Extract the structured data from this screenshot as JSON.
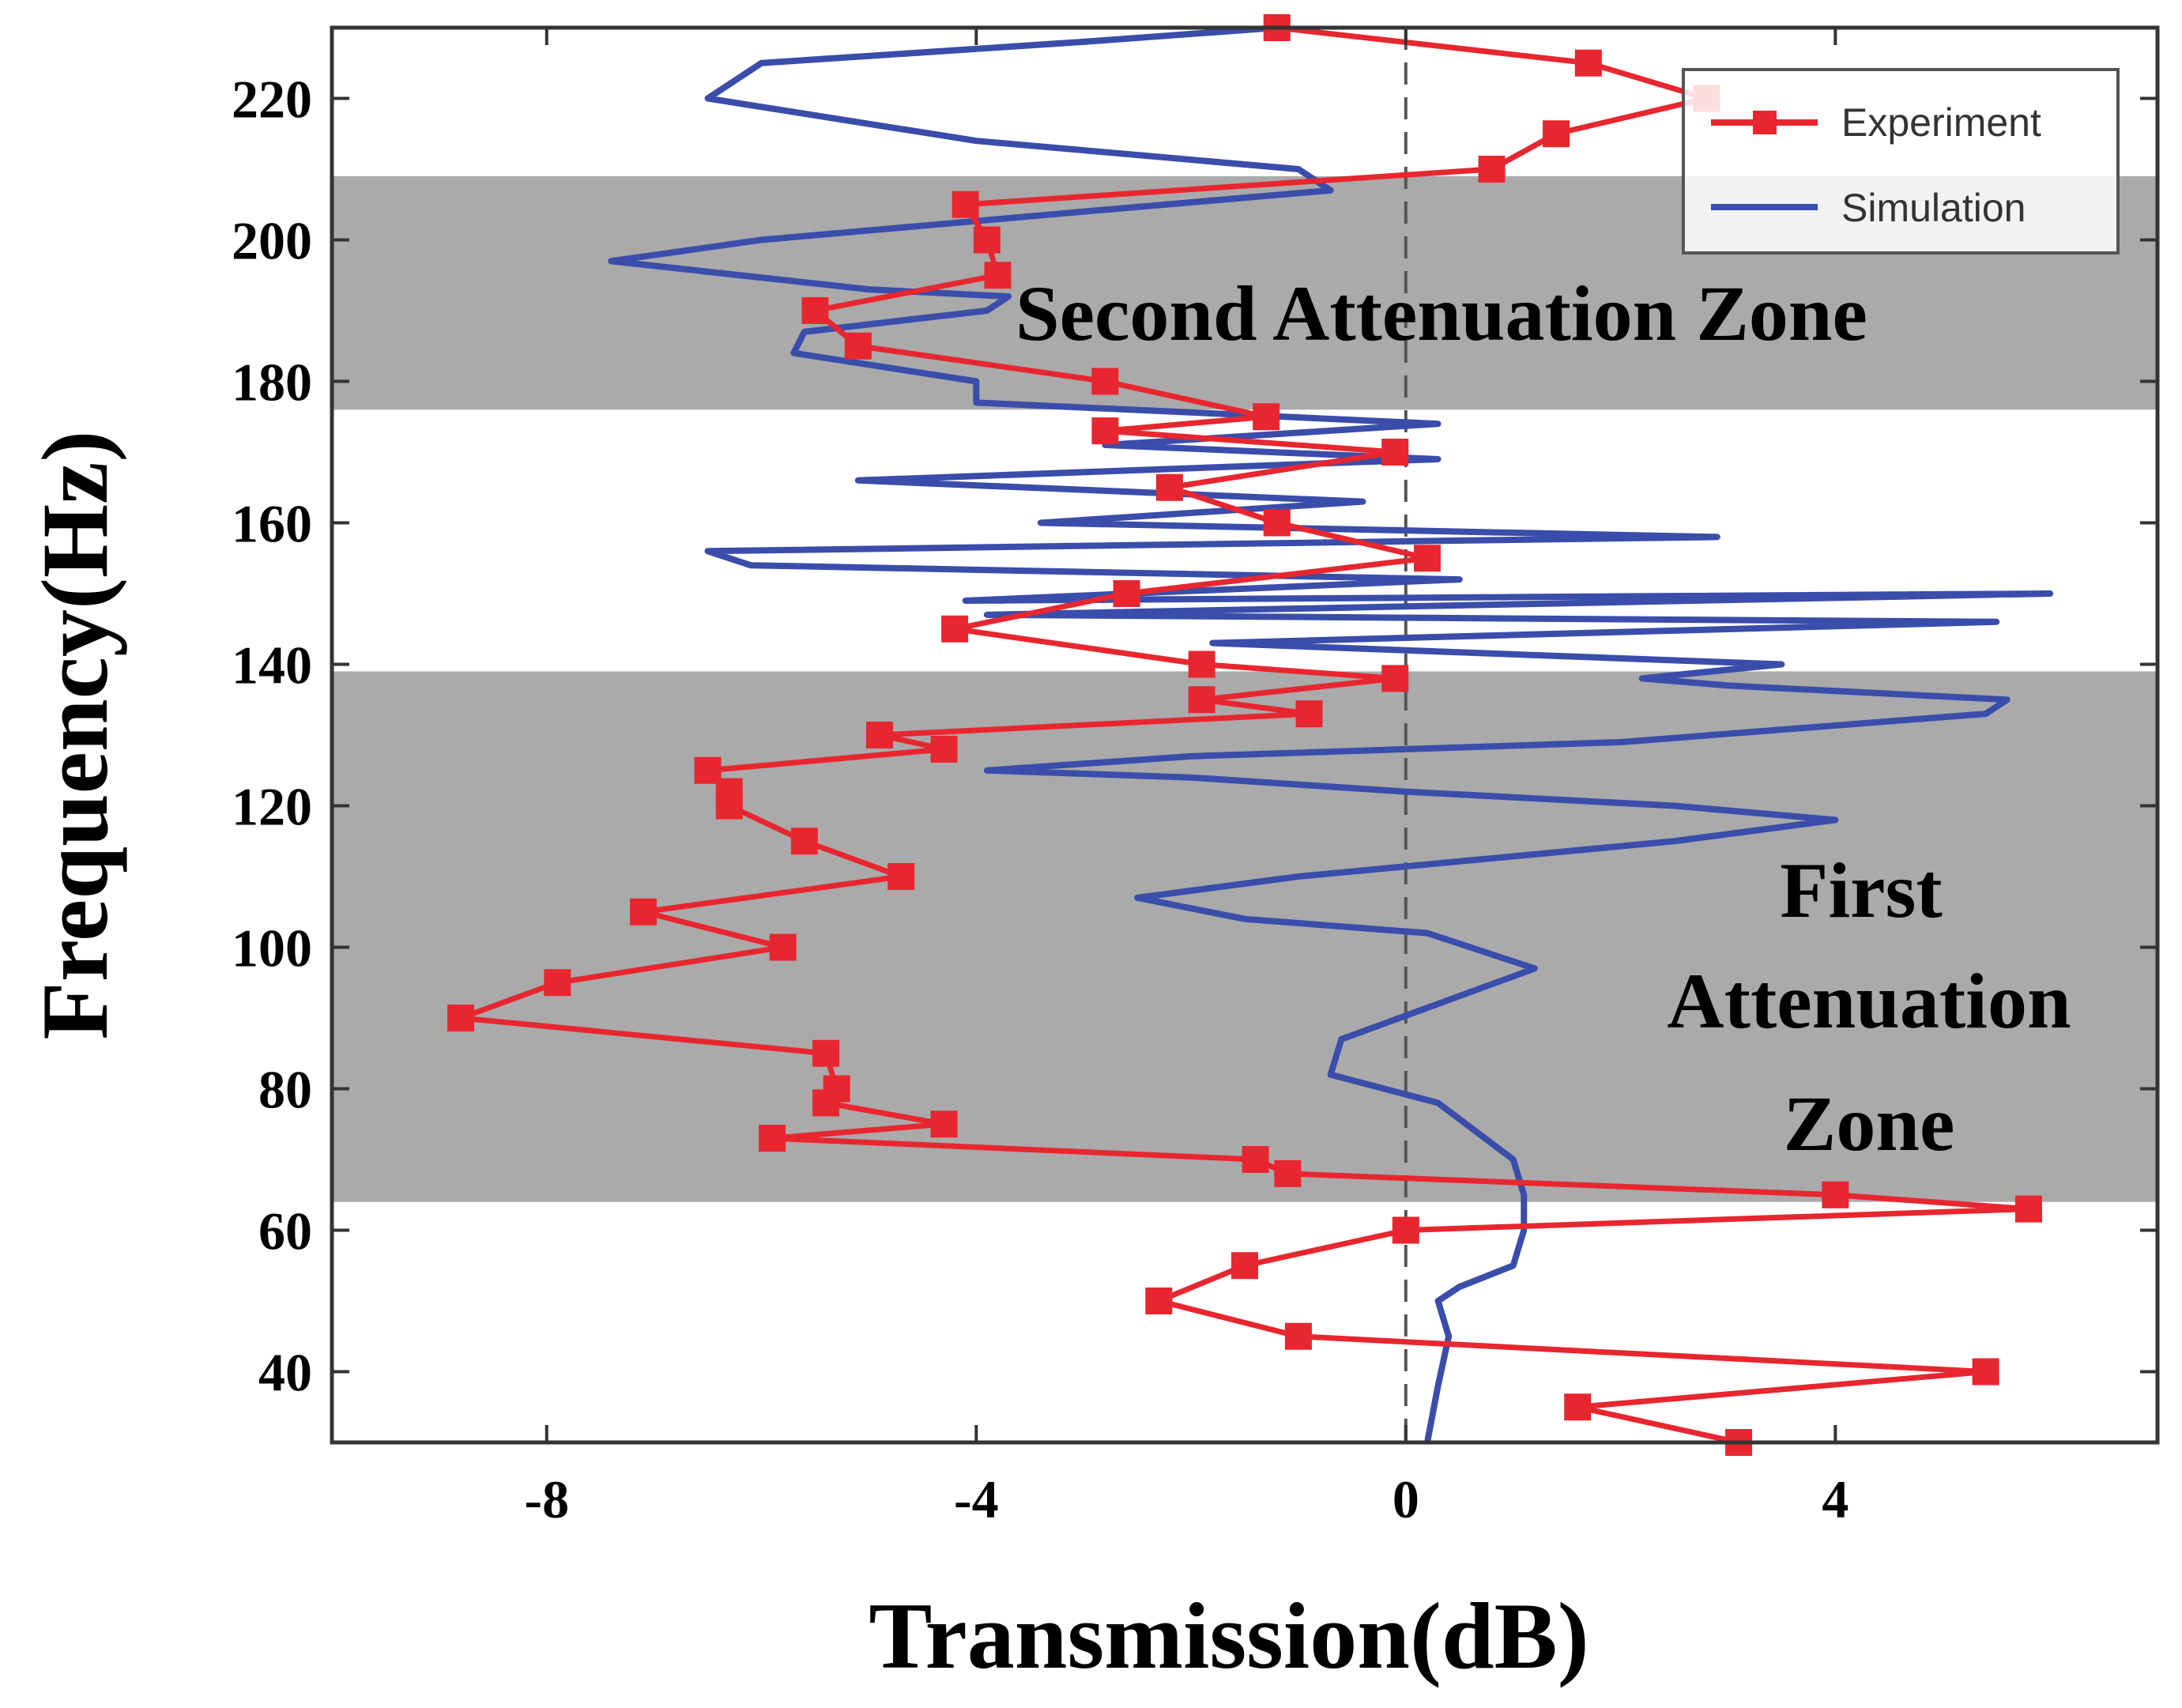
{
  "chart_data": {
    "type": "line",
    "orientation": "transmission on x-axis, frequency on y-axis",
    "xlabel": "Transmission(dB)",
    "ylabel": "Frequency(Hz)",
    "xlim": [
      -10,
      7
    ],
    "ylim": [
      30,
      230
    ],
    "x_ticks": [
      -8,
      -4,
      0,
      4
    ],
    "x_tick_labels": [
      "-8",
      "-4",
      "0",
      "4"
    ],
    "y_ticks": [
      40,
      60,
      80,
      100,
      120,
      140,
      160,
      180,
      200,
      220
    ],
    "y_tick_labels": [
      "40",
      "60",
      "80",
      "100",
      "120",
      "140",
      "160",
      "180",
      "200",
      "220"
    ],
    "reference_line": {
      "x": 0,
      "style": "dashed"
    },
    "shaded_zones": [
      {
        "name": "First Attenuation Zone",
        "label_lines": [
          "First",
          "Attenuation",
          "Zone"
        ],
        "y_range": [
          64,
          139
        ],
        "color": "#aaaaaa"
      },
      {
        "name": "Second Attenuation Zone",
        "label_lines": [
          "Second Attenuation Zone"
        ],
        "y_range": [
          176,
          209
        ],
        "color": "#aaaaaa"
      }
    ],
    "legend": {
      "position": "top-right",
      "entries": [
        "Experiment",
        "Simulation"
      ]
    },
    "series": [
      {
        "name": "Experiment",
        "color": "#e8262f",
        "marker": "square",
        "points": [
          {
            "x": 3.1,
            "y": 30
          },
          {
            "x": 1.6,
            "y": 35
          },
          {
            "x": 5.4,
            "y": 40
          },
          {
            "x": -1.0,
            "y": 45
          },
          {
            "x": -2.3,
            "y": 50
          },
          {
            "x": -1.5,
            "y": 55
          },
          {
            "x": 0.0,
            "y": 60
          },
          {
            "x": 5.8,
            "y": 63
          },
          {
            "x": 4.0,
            "y": 65
          },
          {
            "x": -1.1,
            "y": 68
          },
          {
            "x": -1.4,
            "y": 70
          },
          {
            "x": -5.9,
            "y": 73
          },
          {
            "x": -4.3,
            "y": 75
          },
          {
            "x": -5.4,
            "y": 78
          },
          {
            "x": -5.3,
            "y": 80
          },
          {
            "x": -5.4,
            "y": 85
          },
          {
            "x": -8.8,
            "y": 90
          },
          {
            "x": -7.9,
            "y": 95
          },
          {
            "x": -5.8,
            "y": 100
          },
          {
            "x": -7.1,
            "y": 105
          },
          {
            "x": -4.7,
            "y": 110
          },
          {
            "x": -5.6,
            "y": 115
          },
          {
            "x": -6.3,
            "y": 120
          },
          {
            "x": -6.3,
            "y": 122
          },
          {
            "x": -6.5,
            "y": 125
          },
          {
            "x": -4.3,
            "y": 128
          },
          {
            "x": -4.9,
            "y": 130
          },
          {
            "x": -0.9,
            "y": 133
          },
          {
            "x": -1.9,
            "y": 135
          },
          {
            "x": -0.1,
            "y": 138
          },
          {
            "x": -1.9,
            "y": 140
          },
          {
            "x": -4.2,
            "y": 145
          },
          {
            "x": -2.6,
            "y": 150
          },
          {
            "x": 0.2,
            "y": 155
          },
          {
            "x": -1.2,
            "y": 160
          },
          {
            "x": -2.2,
            "y": 165
          },
          {
            "x": -0.1,
            "y": 170
          },
          {
            "x": -2.8,
            "y": 173
          },
          {
            "x": -1.3,
            "y": 175
          },
          {
            "x": -2.8,
            "y": 180
          },
          {
            "x": -5.1,
            "y": 185
          },
          {
            "x": -5.5,
            "y": 190
          },
          {
            "x": -3.8,
            "y": 195
          },
          {
            "x": -3.9,
            "y": 200
          },
          {
            "x": -4.1,
            "y": 205
          },
          {
            "x": 0.8,
            "y": 210
          },
          {
            "x": 1.4,
            "y": 215
          },
          {
            "x": 2.8,
            "y": 220
          },
          {
            "x": 1.7,
            "y": 225
          },
          {
            "x": -1.2,
            "y": 230
          }
        ]
      },
      {
        "name": "Simulation",
        "color": "#3a4dab",
        "marker": "none",
        "points": [
          {
            "x": 0.2,
            "y": 30
          },
          {
            "x": 0.3,
            "y": 38
          },
          {
            "x": 0.4,
            "y": 45
          },
          {
            "x": 0.3,
            "y": 50
          },
          {
            "x": 0.5,
            "y": 52
          },
          {
            "x": 1.0,
            "y": 55
          },
          {
            "x": 1.1,
            "y": 60
          },
          {
            "x": 1.1,
            "y": 65
          },
          {
            "x": 1.0,
            "y": 70
          },
          {
            "x": 0.3,
            "y": 78
          },
          {
            "x": -0.7,
            "y": 82
          },
          {
            "x": -0.6,
            "y": 87
          },
          {
            "x": 0.3,
            "y": 92
          },
          {
            "x": 1.2,
            "y": 97
          },
          {
            "x": 0.2,
            "y": 102
          },
          {
            "x": -1.5,
            "y": 104
          },
          {
            "x": -2.5,
            "y": 107
          },
          {
            "x": -1.0,
            "y": 110
          },
          {
            "x": 2.5,
            "y": 115
          },
          {
            "x": 4.0,
            "y": 118
          },
          {
            "x": 2.5,
            "y": 120
          },
          {
            "x": 0.0,
            "y": 122
          },
          {
            "x": -2.0,
            "y": 124
          },
          {
            "x": -3.9,
            "y": 125
          },
          {
            "x": -2.0,
            "y": 127
          },
          {
            "x": 2.0,
            "y": 129
          },
          {
            "x": 5.4,
            "y": 133
          },
          {
            "x": 5.6,
            "y": 135
          },
          {
            "x": 3.0,
            "y": 137
          },
          {
            "x": 2.2,
            "y": 138
          },
          {
            "x": 3.5,
            "y": 140
          },
          {
            "x": -1.8,
            "y": 143
          },
          {
            "x": 5.5,
            "y": 146
          },
          {
            "x": -3.9,
            "y": 147
          },
          {
            "x": 6.0,
            "y": 150
          },
          {
            "x": -4.1,
            "y": 149
          },
          {
            "x": 0.5,
            "y": 152
          },
          {
            "x": -6.1,
            "y": 154
          },
          {
            "x": -6.5,
            "y": 156
          },
          {
            "x": 2.9,
            "y": 158
          },
          {
            "x": -3.4,
            "y": 160
          },
          {
            "x": -0.4,
            "y": 163
          },
          {
            "x": -5.1,
            "y": 166
          },
          {
            "x": 0.3,
            "y": 169
          },
          {
            "x": -2.8,
            "y": 171
          },
          {
            "x": 0.3,
            "y": 174
          },
          {
            "x": -4.0,
            "y": 177
          },
          {
            "x": -4.0,
            "y": 180
          },
          {
            "x": -5.7,
            "y": 184
          },
          {
            "x": -5.6,
            "y": 187
          },
          {
            "x": -3.9,
            "y": 190
          },
          {
            "x": -3.7,
            "y": 192
          },
          {
            "x": -5.0,
            "y": 193
          },
          {
            "x": -7.4,
            "y": 197
          },
          {
            "x": -6.0,
            "y": 200
          },
          {
            "x": -3.0,
            "y": 204
          },
          {
            "x": -0.7,
            "y": 207
          },
          {
            "x": -1.0,
            "y": 210
          },
          {
            "x": -4.0,
            "y": 214
          },
          {
            "x": -6.5,
            "y": 220
          },
          {
            "x": -6.0,
            "y": 225
          },
          {
            "x": -3.0,
            "y": 228
          },
          {
            "x": -1.2,
            "y": 230
          }
        ]
      }
    ]
  }
}
